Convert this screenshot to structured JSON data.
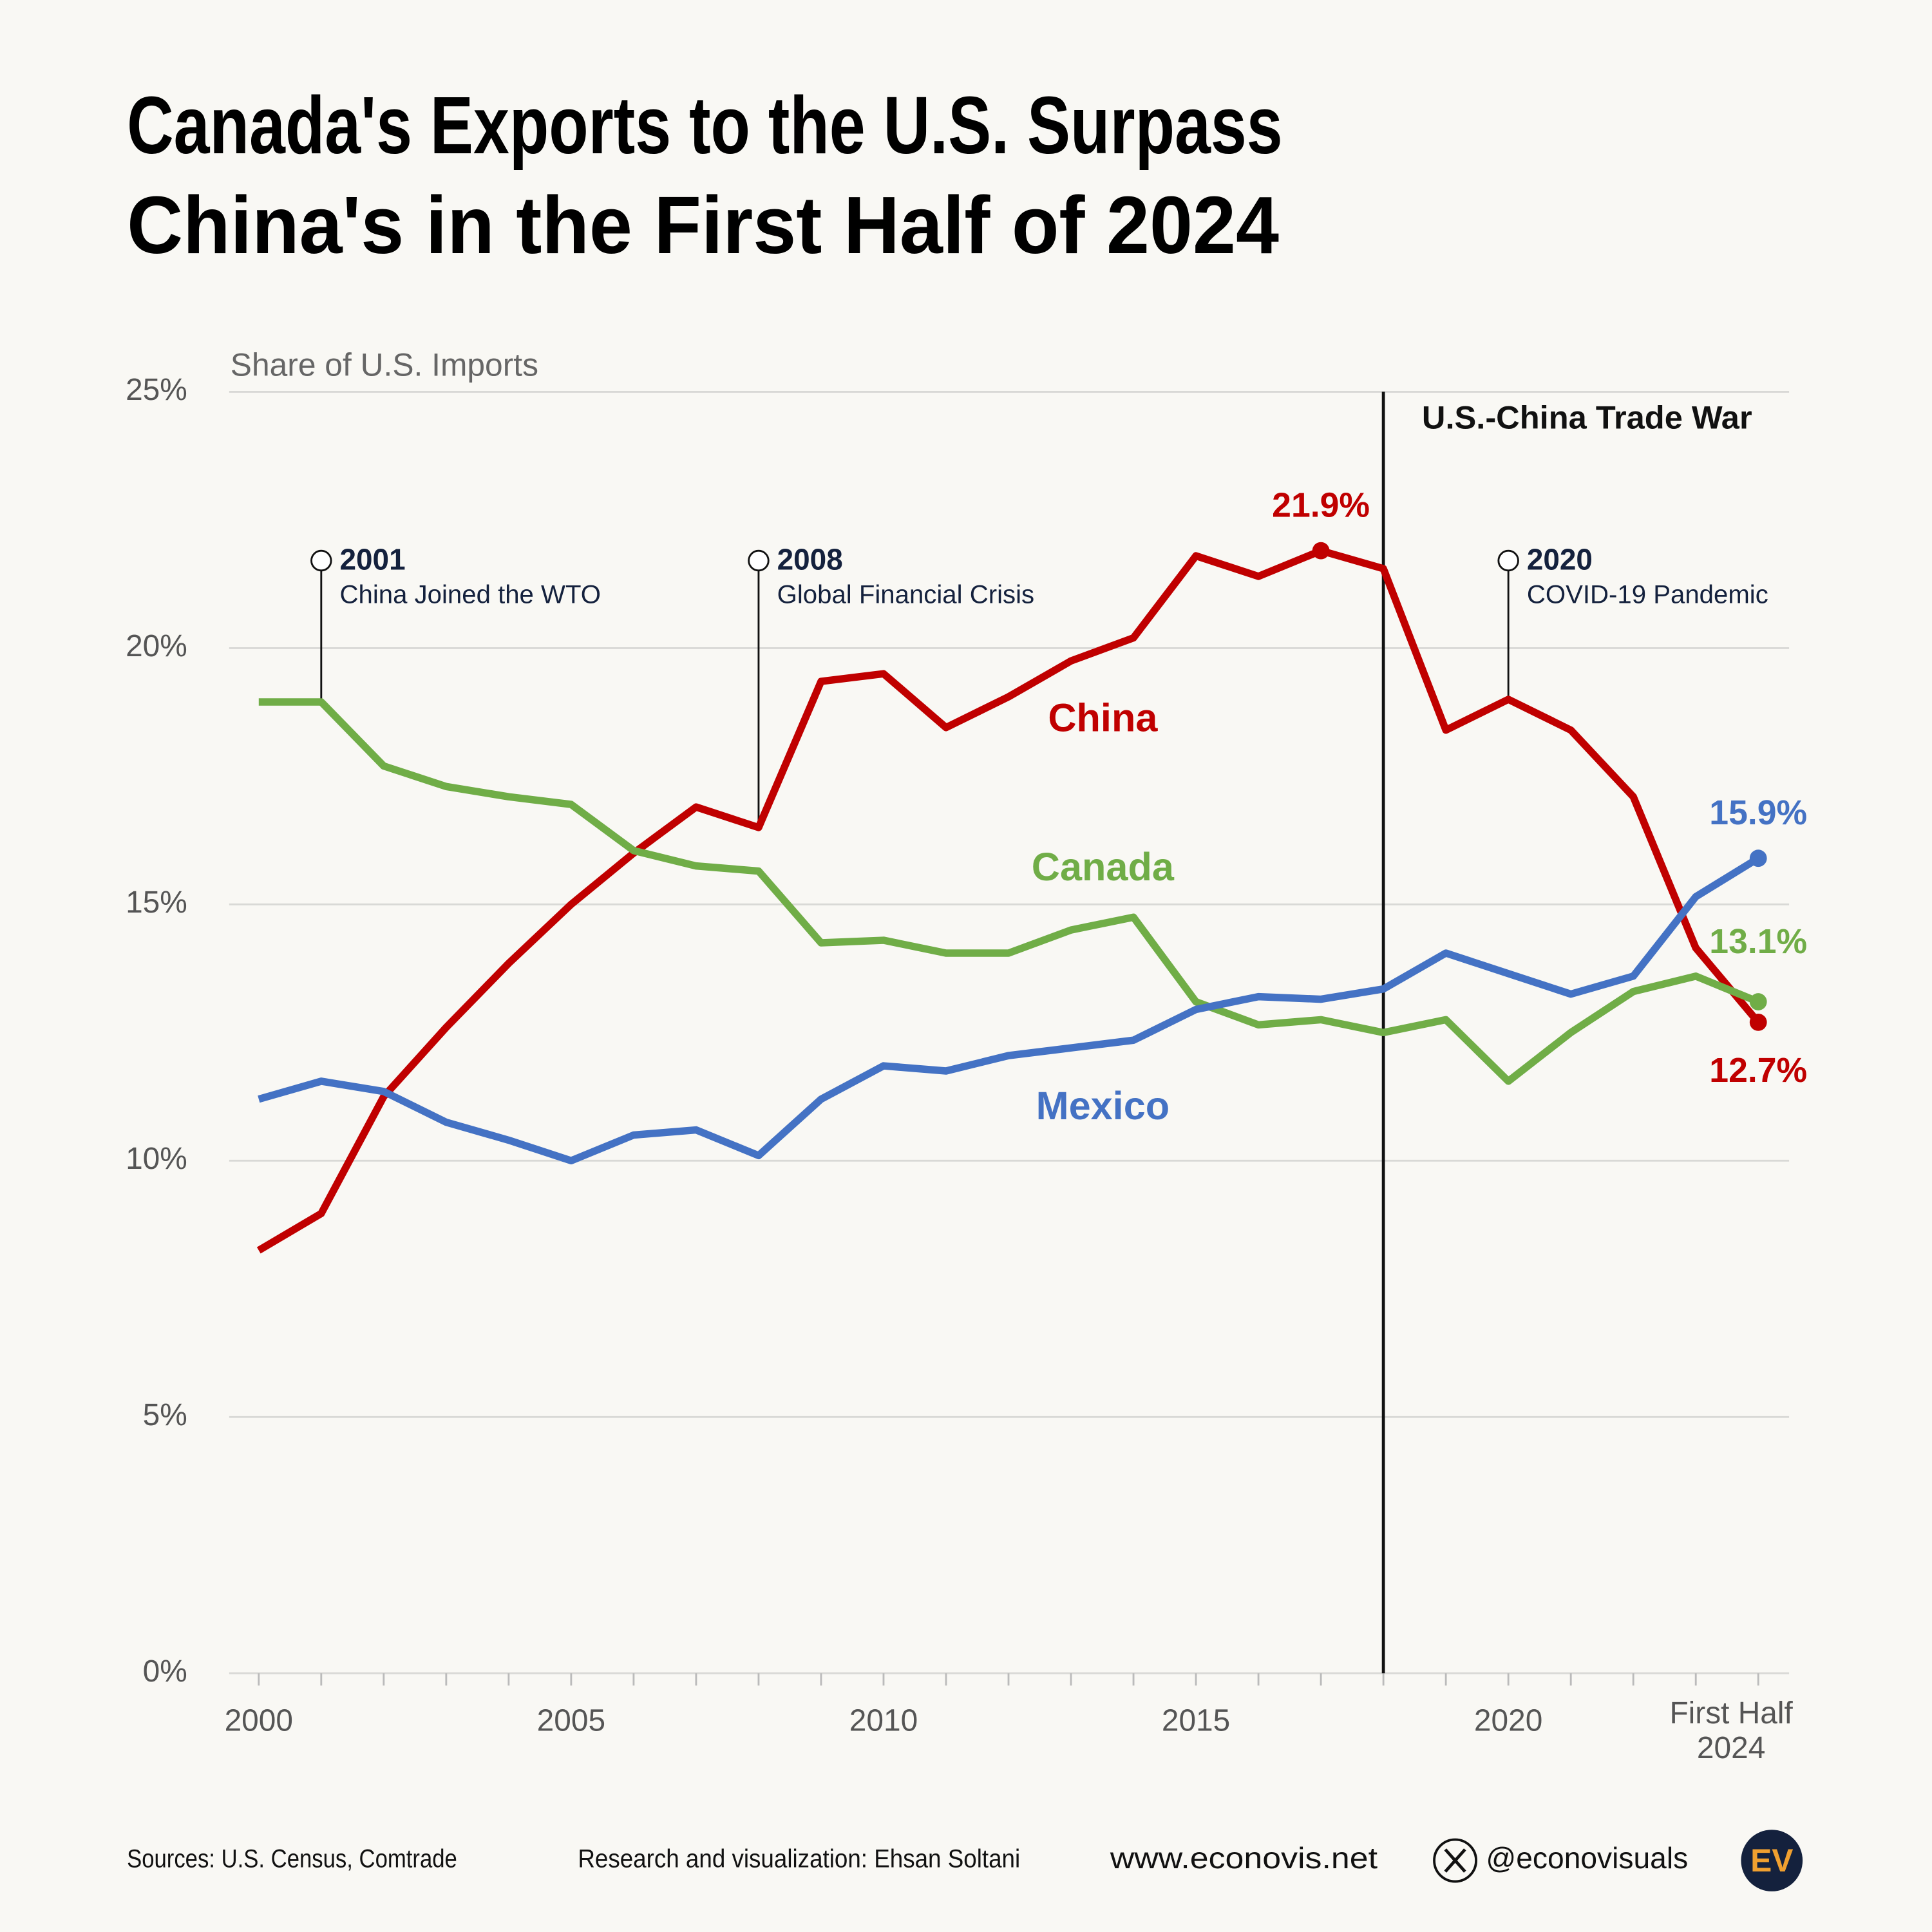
{
  "chart_data": {
    "type": "line",
    "title": [
      "Canada's Exports to the U.S. Surpass",
      "China's in the First Half of 2024"
    ],
    "y_axis_title": "Share of U.S. Imports",
    "categories": [
      "2000",
      null,
      null,
      null,
      null,
      "2005",
      null,
      null,
      null,
      null,
      "2010",
      null,
      null,
      null,
      null,
      "2015",
      null,
      null,
      null,
      null,
      "2020",
      null,
      null,
      null,
      "First Half 2024"
    ],
    "series": [
      {
        "name": "China",
        "color": "#c00000",
        "values": [
          8.25,
          8.97,
          11.25,
          12.6,
          13.85,
          15.0,
          16.0,
          16.9,
          16.5,
          19.35,
          19.5,
          18.45,
          19.05,
          19.75,
          20.2,
          21.8,
          21.4,
          21.9,
          21.55,
          18.4,
          19.0,
          18.4,
          17.1,
          14.15,
          12.7
        ],
        "value_labels": [
          null,
          null,
          null,
          null,
          null,
          null,
          null,
          null,
          null,
          null,
          null,
          null,
          null,
          null,
          null,
          null,
          null,
          "21.9%",
          null,
          null,
          null,
          null,
          null,
          null,
          "12.7%"
        ]
      },
      {
        "name": "Canada",
        "color": "#70ad47",
        "values": [
          18.95,
          18.95,
          17.7,
          17.3,
          17.1,
          16.95,
          16.05,
          15.75,
          15.65,
          14.25,
          14.3,
          14.05,
          14.05,
          14.5,
          14.75,
          13.1,
          12.65,
          12.75,
          12.5,
          12.75,
          11.55,
          12.5,
          13.3,
          13.6,
          13.1
        ],
        "value_labels": [
          null,
          null,
          null,
          null,
          null,
          null,
          null,
          null,
          null,
          null,
          null,
          null,
          null,
          null,
          null,
          null,
          null,
          null,
          null,
          null,
          null,
          null,
          null,
          null,
          "13.1%"
        ]
      },
      {
        "name": "Mexico",
        "color": "#4472c4",
        "values": [
          11.2,
          11.55,
          11.35,
          10.75,
          10.4,
          10.0,
          10.5,
          10.6,
          10.1,
          11.2,
          11.85,
          11.75,
          12.05,
          12.2,
          12.35,
          12.95,
          13.2,
          13.15,
          13.35,
          14.05,
          13.65,
          13.25,
          13.6,
          15.15,
          15.9
        ],
        "value_labels": [
          null,
          null,
          null,
          null,
          null,
          null,
          null,
          null,
          null,
          null,
          null,
          null,
          null,
          null,
          null,
          null,
          null,
          null,
          null,
          null,
          null,
          null,
          null,
          null,
          "15.9%"
        ]
      }
    ],
    "ylim": [
      0,
      25
    ],
    "yticks": [
      {
        "value": 0,
        "label": "0%"
      },
      {
        "value": 5,
        "label": "5%"
      },
      {
        "value": 10,
        "label": "10%"
      },
      {
        "value": 15,
        "label": "15%"
      },
      {
        "value": 20,
        "label": "20%"
      },
      {
        "value": 25,
        "label": "25%"
      }
    ],
    "grid": true,
    "annotations": [
      {
        "year": "2001",
        "text": "China Joined the WTO"
      },
      {
        "year": "2008",
        "text": "Global Financial Crisis"
      },
      {
        "year": "2020",
        "text": "COVID-19 Pandemic"
      }
    ],
    "period_label": "U.S.-China Trade War"
  },
  "footer": {
    "sources": "Sources: U.S. Census, Comtrade",
    "credit": "Research and visualization: Ehsan Soltani",
    "website": "www.econovis.net",
    "handle": "@econovisuals",
    "logo": "EV"
  }
}
